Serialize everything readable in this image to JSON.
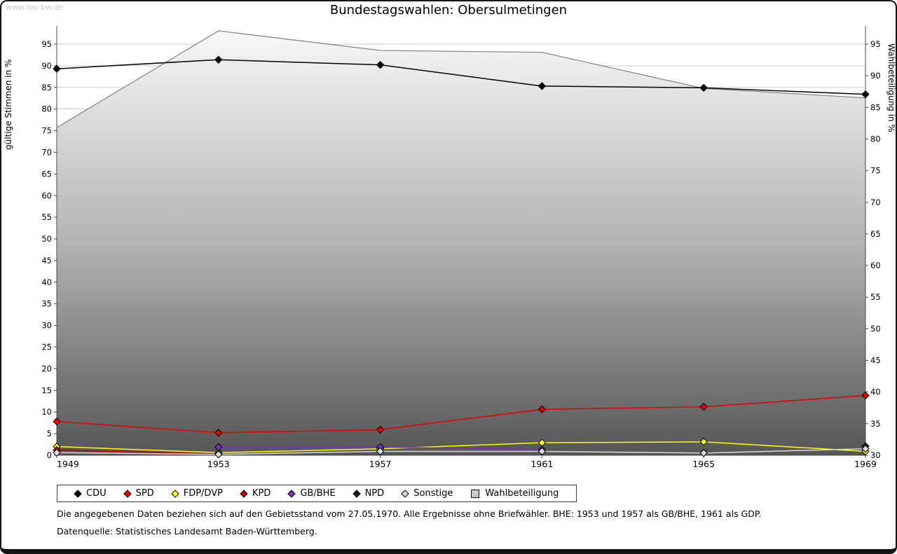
{
  "watermark": "www.leo-bw.de",
  "title": "Bundestagswahlen: Obersulmetingen",
  "footnotes": [
    "Die angegebenen Daten beziehen sich auf den Gebietsstand vom 27.05.1970. Alle Ergebnisse ohne Briefwähler. BHE: 1953 und 1957 als GB/BHE, 1961 als GDP.",
    "Datenquelle: Statistisches Landesamt Baden-Württemberg."
  ],
  "chart_data": {
    "type": "line",
    "title": "Bundestagswahlen: Obersulmetingen",
    "x": [
      1949,
      1953,
      1957,
      1961,
      1965,
      1969
    ],
    "left_axis": {
      "label": "gültige Stimmen in %",
      "min": 0,
      "max": 95,
      "tick_step": 5
    },
    "right_axis": {
      "label": "Wahlbeteiligung in %",
      "min": 30,
      "max": 95,
      "tick_step": 5
    },
    "grid": true,
    "legend_position": "bottom",
    "series": [
      {
        "name": "CDU",
        "color": "#000000",
        "marker": "diamond",
        "axis": "left",
        "kind": "line",
        "values": [
          89.3,
          91.4,
          90.2,
          85.3,
          84.9,
          83.4
        ]
      },
      {
        "name": "SPD",
        "color": "#e60000",
        "marker": "diamond",
        "axis": "left",
        "kind": "line",
        "values": [
          7.8,
          5.2,
          5.9,
          10.6,
          11.2,
          13.8
        ]
      },
      {
        "name": "FDP/DVP",
        "color": "#ffff00",
        "marker": "diamond",
        "axis": "left",
        "kind": "line",
        "values": [
          2.0,
          0.6,
          1.5,
          2.9,
          3.1,
          0.9
        ]
      },
      {
        "name": "KPD",
        "color": "#c00000",
        "marker": "diamond",
        "axis": "left",
        "kind": "line",
        "values": [
          1.2,
          0.3,
          null,
          null,
          null,
          null
        ]
      },
      {
        "name": "GB/BHE",
        "color": "#7d2fbe",
        "marker": "diamond",
        "axis": "left",
        "kind": "line",
        "values": [
          null,
          1.9,
          1.9,
          1.3,
          null,
          null
        ]
      },
      {
        "name": "NPD",
        "color": "#2a1606",
        "marker": "diamond",
        "axis": "left",
        "kind": "line",
        "values": [
          null,
          null,
          null,
          null,
          null,
          2.1
        ]
      },
      {
        "name": "Sonstige",
        "color": "#d8d8d8",
        "marker": "diamond",
        "axis": "left",
        "kind": "line",
        "values": [
          0.6,
          0.2,
          0.9,
          0.9,
          0.5,
          1.5
        ]
      },
      {
        "name": "Wahlbeteiligung",
        "color": "#c9c9c9",
        "marker": "square",
        "axis": "right",
        "kind": "area",
        "values": [
          81.8,
          97.1,
          94.0,
          93.7,
          88.0,
          86.5
        ]
      }
    ]
  }
}
